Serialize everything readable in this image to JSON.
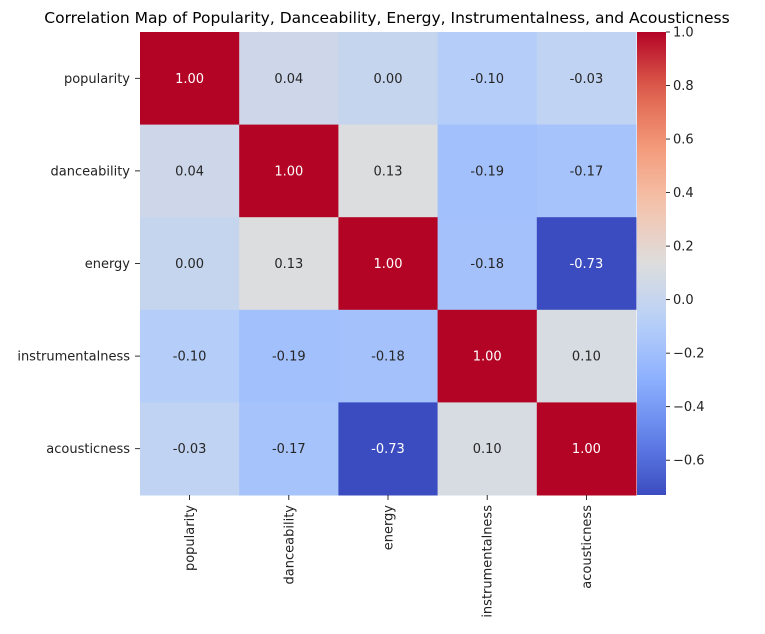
{
  "chart_data": {
    "type": "heatmap",
    "title": "Correlation Map of Popularity, Danceability, Energy, Instrumentalness, and Acousticness",
    "row_labels": [
      "popularity",
      "danceability",
      "energy",
      "instrumentalness",
      "acousticness"
    ],
    "col_labels": [
      "popularity",
      "danceability",
      "energy",
      "instrumentalness",
      "acousticness"
    ],
    "values": [
      [
        1.0,
        0.04,
        0.0,
        -0.1,
        -0.03
      ],
      [
        0.04,
        1.0,
        0.13,
        -0.19,
        -0.17
      ],
      [
        0.0,
        0.13,
        1.0,
        -0.18,
        -0.73
      ],
      [
        -0.1,
        -0.19,
        -0.18,
        1.0,
        0.1
      ],
      [
        -0.03,
        -0.17,
        -0.73,
        0.1,
        1.0
      ]
    ],
    "cell_labels": [
      [
        "1.00",
        "0.04",
        "0.00",
        "-0.10",
        "-0.03"
      ],
      [
        "0.04",
        "1.00",
        "0.13",
        "-0.19",
        "-0.17"
      ],
      [
        "0.00",
        "0.13",
        "1.00",
        "-0.18",
        "-0.73"
      ],
      [
        "-0.10",
        "-0.19",
        "-0.18",
        "1.00",
        "0.10"
      ],
      [
        "-0.03",
        "-0.17",
        "-0.73",
        "0.10",
        "1.00"
      ]
    ],
    "colormap": "coolwarm",
    "colorbar": {
      "vmin": -0.73,
      "vmax": 1.0,
      "ticks": [
        1.0,
        0.8,
        0.6,
        0.4,
        0.2,
        0.0,
        -0.2,
        -0.4,
        -0.6
      ],
      "tick_labels": [
        "1.0",
        "0.8",
        "0.6",
        "0.4",
        "0.2",
        "0.0",
        "−0.2",
        "−0.4",
        "−0.6"
      ]
    }
  }
}
